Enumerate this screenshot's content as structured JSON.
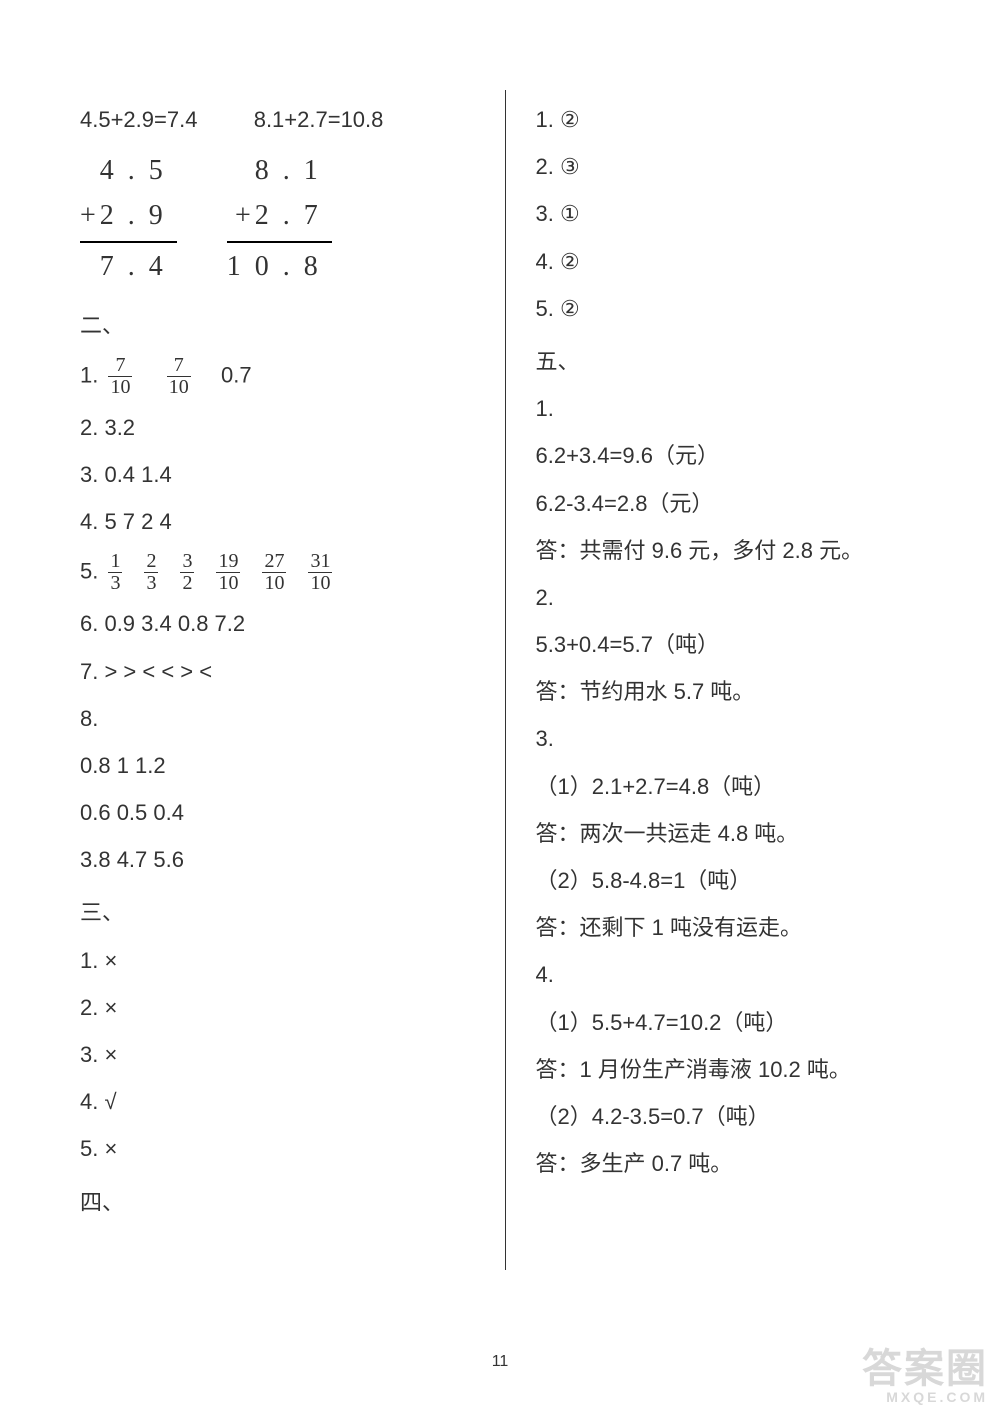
{
  "page_number": "11",
  "colors": {
    "text": "#333333",
    "background": "#ffffff",
    "divider": "#333333",
    "watermark": "#d8d8d8"
  },
  "left": {
    "top_eq1": "4.5+2.9=7.4",
    "top_eq2": "8.1+2.7=10.8",
    "calc1": {
      "r1": "4.5",
      "r2_op": "+",
      "r2": "2.9",
      "sum": "7.4"
    },
    "calc2": {
      "r1": "8.1",
      "r2_op": "+",
      "r2": "2.7",
      "sum": "10.8"
    },
    "sec2_head": "二、",
    "q1_prefix": "1. ",
    "q1_f1_num": "7",
    "q1_f1_den": "10",
    "q1_f2_num": "7",
    "q1_f2_den": "10",
    "q1_tail": "0.7",
    "q2": "2.  3.2",
    "q3": "3.  0.4   1.4",
    "q4": "4.  5   7   2   4",
    "q5_prefix": "5. ",
    "q5_fracs": [
      {
        "n": "1",
        "d": "3"
      },
      {
        "n": "2",
        "d": "3"
      },
      {
        "n": "3",
        "d": "2"
      },
      {
        "n": "19",
        "d": "10"
      },
      {
        "n": "27",
        "d": "10"
      },
      {
        "n": "31",
        "d": "10"
      }
    ],
    "q6": "6.  0.9   3.4   0.8   7.2",
    "q7": "7.  >    >    <    <    >    <",
    "q8_label": "8.",
    "q8_row1": "0.8   1   1.2",
    "q8_row2": "0.6   0.5   0.4",
    "q8_row3": "3.8   4.7   5.6",
    "sec3_head": "三、",
    "s3_1": "1.  ×",
    "s3_2": "2.  ×",
    "s3_3": "3.  ×",
    "s3_4": "4.  √",
    "s3_5": "5.  ×",
    "sec4_head": "四、"
  },
  "right": {
    "s4_1": "1.  ②",
    "s4_2": "2.  ③",
    "s4_3": "3.  ①",
    "s4_4": "4.  ②",
    "s4_5": "5.  ②",
    "sec5_head": "五、",
    "p1_label": "1.",
    "p1_eq1": "6.2+3.4=9.6（元）",
    "p1_eq2": "6.2-3.4=2.8（元）",
    "p1_ans": "答：共需付 9.6 元，多付 2.8 元。",
    "p2_label": "2.",
    "p2_eq1": "5.3+0.4=5.7（吨）",
    "p2_ans": "答：节约用水 5.7 吨。",
    "p3_label": "3.",
    "p3_1": "（1）2.1+2.7=4.8（吨）",
    "p3_1_ans": "答：两次一共运走 4.8 吨。",
    "p3_2": "（2）5.8-4.8=1（吨）",
    "p3_2_ans": "答：还剩下 1 吨没有运走。",
    "p4_label": "4.",
    "p4_1": "（1）5.5+4.7=10.2（吨）",
    "p4_1_ans": "答：1 月份生产消毒液 10.2 吨。",
    "p4_2": "（2）4.2-3.5=0.7（吨）",
    "p4_2_ans": "答：多生产 0.7 吨。"
  },
  "watermark": {
    "big": "答案圈",
    "small": "MXQE.COM"
  }
}
